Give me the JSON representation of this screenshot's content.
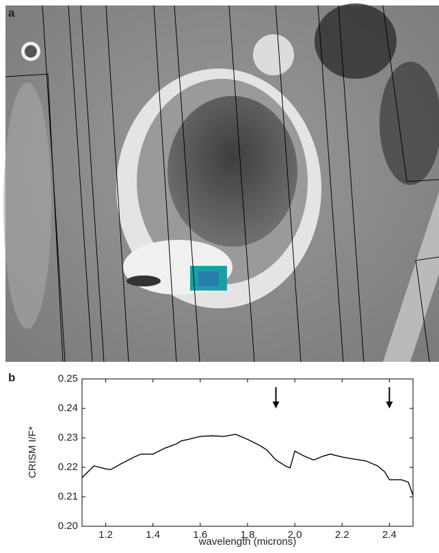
{
  "figure": {
    "panel_labels": [
      "a",
      "b"
    ]
  },
  "chart_data": {
    "type": "line",
    "y_label": "CRISM I/F*",
    "x_label": "wavelength (microns)",
    "x": [
      1.1,
      1.15,
      1.2,
      1.22,
      1.25,
      1.26,
      1.28,
      1.32,
      1.35,
      1.4,
      1.45,
      1.5,
      1.52,
      1.55,
      1.6,
      1.65,
      1.7,
      1.75,
      1.8,
      1.85,
      1.88,
      1.92,
      1.96,
      1.98,
      2.0,
      2.04,
      2.08,
      2.12,
      2.15,
      2.2,
      2.25,
      2.3,
      2.35,
      2.38,
      2.4,
      2.45,
      2.48,
      2.5
    ],
    "series": [
      {
        "color": "#000000",
        "values": [
          0.2165,
          0.2205,
          0.2195,
          0.2192,
          0.2205,
          0.221,
          0.2218,
          0.2235,
          0.2245,
          0.2245,
          0.2265,
          0.228,
          0.229,
          0.2295,
          0.2305,
          0.2307,
          0.2305,
          0.2312,
          0.2295,
          0.2275,
          0.226,
          0.2225,
          0.2205,
          0.2198,
          0.2255,
          0.2238,
          0.2225,
          0.2238,
          0.2245,
          0.2235,
          0.2228,
          0.2222,
          0.2205,
          0.2185,
          0.2158,
          0.2158,
          0.215,
          0.2105
        ]
      }
    ],
    "markers_x": [
      1.92,
      2.4
    ],
    "xlim": [
      1.1,
      2.5
    ],
    "ylim": [
      0.2,
      0.25
    ],
    "xticks": [
      1.2,
      1.4,
      1.6,
      1.8,
      {
        "value": 2,
        "label": "2.0"
      },
      2.2,
      2.4
    ],
    "yticks": [
      {
        "value": 0.2,
        "label": "0.20"
      },
      0.21,
      0.22,
      0.23,
      0.24,
      0.25
    ]
  }
}
